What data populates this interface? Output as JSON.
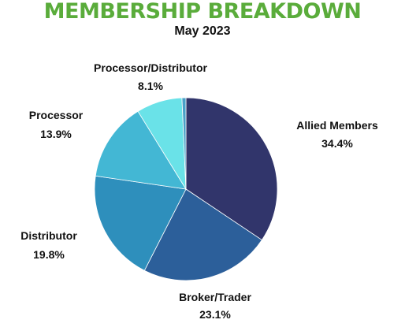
{
  "header": {
    "title": "MEMBERSHIP BREAKDOWN",
    "subtitle": "May 2023"
  },
  "chart_data": {
    "type": "pie",
    "title": "MEMBERSHIP BREAKDOWN",
    "subtitle": "May 2023",
    "categories": [
      "Allied Members",
      "Broker/Trader",
      "Distributor",
      "Processor",
      "Processor/Distributor",
      ""
    ],
    "values": [
      34.4,
      23.1,
      19.8,
      13.9,
      8.1,
      0.7
    ],
    "value_labels": [
      "34.4%",
      "23.1%",
      "19.8%",
      "13.9%",
      "8.1%",
      ""
    ],
    "colors": [
      "#31356b",
      "#2c5f9a",
      "#2e8fbc",
      "#43b7d4",
      "#6ae2e8",
      "#49a0c8"
    ],
    "start_angle": "12 o'clock",
    "direction": "clockwise",
    "legend": "none (direct labels)"
  }
}
